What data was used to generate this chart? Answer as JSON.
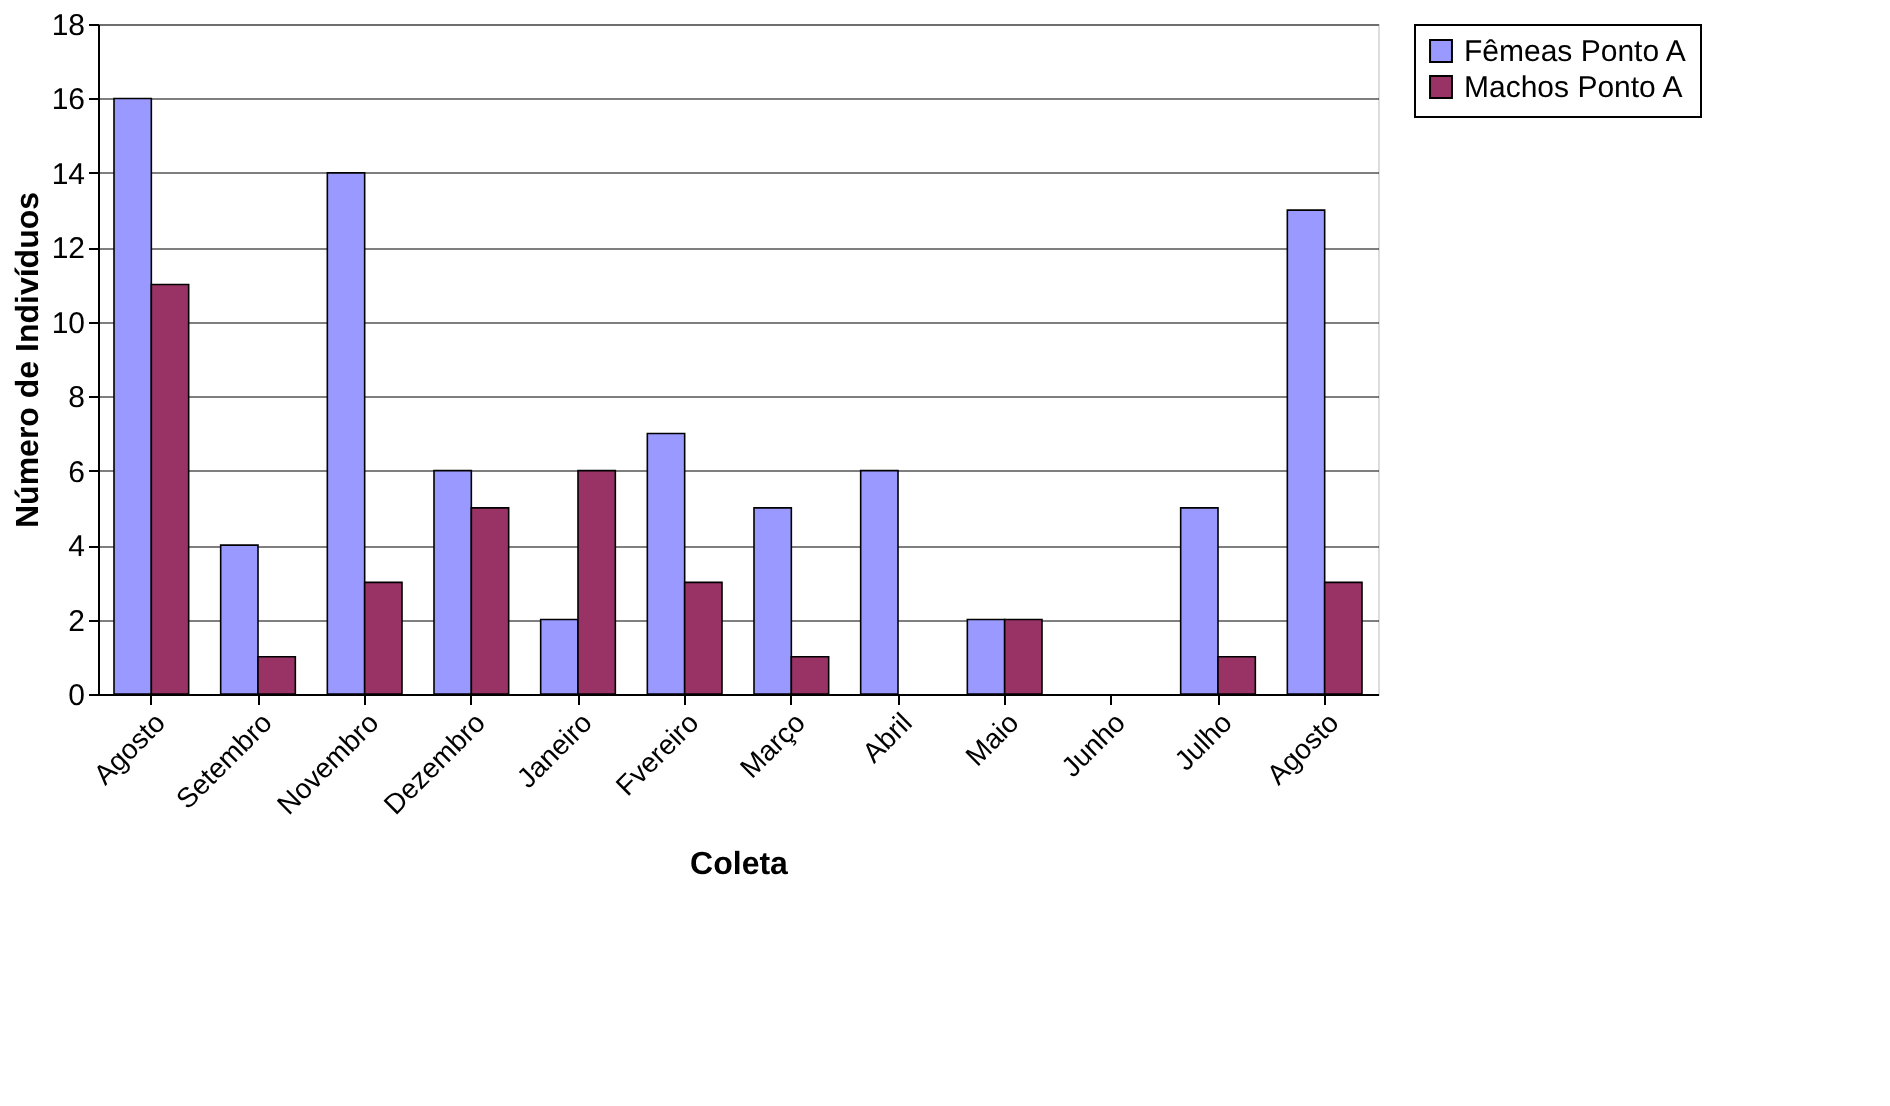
{
  "chart_data": {
    "type": "bar",
    "xlabel": "Coleta",
    "ylabel": "Número de Indivíduos",
    "categories": [
      "Agosto",
      "Setembro",
      "Novembro",
      "Dezembro",
      "Janeiro",
      "Fvereiro",
      "Março",
      "Abril",
      "Maio",
      "Junho",
      "Julho",
      "Agosto"
    ],
    "series": [
      {
        "name": "Fêmeas Ponto A",
        "color": "#9999ff",
        "values": [
          16,
          4,
          14,
          6,
          2,
          7,
          5,
          6,
          2,
          0,
          5,
          13
        ]
      },
      {
        "name": "Machos Ponto A",
        "color": "#993366",
        "values": [
          11,
          1,
          3,
          5,
          6,
          3,
          1,
          0,
          2,
          0,
          1,
          3
        ]
      }
    ],
    "ylim": [
      0,
      18
    ],
    "yticks": [
      0,
      2,
      4,
      6,
      8,
      10,
      12,
      14,
      16,
      18
    ],
    "grid": "y",
    "legend": "right"
  }
}
